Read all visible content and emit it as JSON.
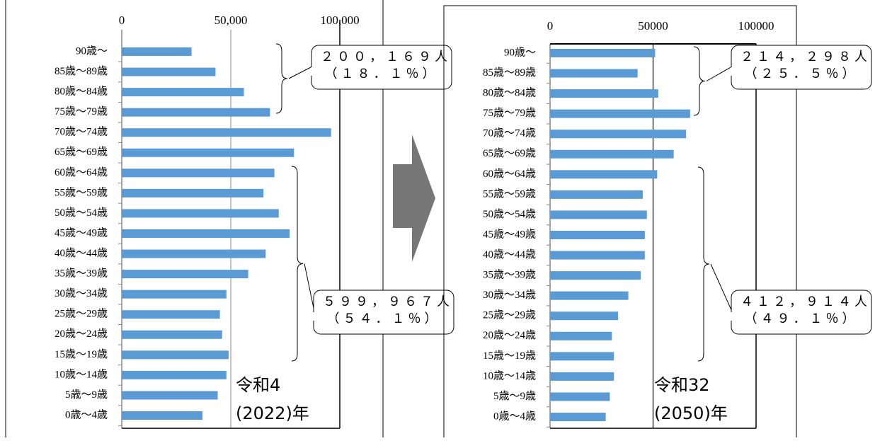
{
  "chart_data": [
    {
      "type": "bar",
      "orientation": "horizontal",
      "categories": [
        "90歳～",
        "85歳～89歳",
        "80歳～84歳",
        "75歳～79歳",
        "70歳～74歳",
        "65歳～69歳",
        "60歳～64歳",
        "55歳～59歳",
        "50歳～54歳",
        "45歳～49歳",
        "40歳～44歳",
        "35歳～39歳",
        "30歳～34歳",
        "25歳～29歳",
        "20歳～24歳",
        "15歳～19歳",
        "10歳～14歳",
        "5歳～9歳",
        "0歳～4歳"
      ],
      "values": [
        32000,
        43000,
        56000,
        68000,
        96000,
        79000,
        70000,
        65000,
        72000,
        77000,
        66000,
        58000,
        48000,
        45000,
        46000,
        49000,
        48000,
        44000,
        37000
      ],
      "color": "#5b9bd5",
      "grid": true,
      "grid_color": "#999999",
      "xlim": [
        0,
        100000
      ],
      "xticks": [
        0,
        {
          "value": 50000,
          "label": "50,000"
        },
        {
          "value": 100000,
          "label": "100,000"
        }
      ],
      "annotations": [
        "２００，１６９人",
        "（１８．１％）",
        "５９９，９６７人",
        "（５４．１％）",
        "令和4",
        "(2022)年"
      ]
    },
    {
      "type": "bar",
      "orientation": "horizontal",
      "categories": [
        "90歳～",
        "85歳～89歳",
        "80歳～84歳",
        "75歳～79歳",
        "70歳～74歳",
        "65歳～69歳",
        "60歳～64歳",
        "55歳～59歳",
        "50歳～54歳",
        "45歳～49歳",
        "40歳～44歳",
        "35歳～39歳",
        "30歳～34歳",
        "25歳～29歳",
        "20歳～24歳",
        "15歳～19歳",
        "10歳～14歳",
        "5歳～9歳",
        "0歳～4歳"
      ],
      "values": [
        51000,
        42500,
        52500,
        68000,
        66000,
        60000,
        52000,
        45000,
        47000,
        46000,
        46000,
        44000,
        38000,
        33000,
        30000,
        31000,
        31000,
        29000,
        27000
      ],
      "color": "#5b9bd5",
      "grid": true,
      "grid_color": "#000000",
      "xlim": [
        0,
        100000
      ],
      "xticks": [
        0,
        50000,
        100000
      ],
      "annotations": [
        "２１４，２９８人",
        "（２５．５％）",
        "４１２，９１４人",
        "（４９．１％）",
        "令和32",
        "(2050)年"
      ]
    }
  ]
}
